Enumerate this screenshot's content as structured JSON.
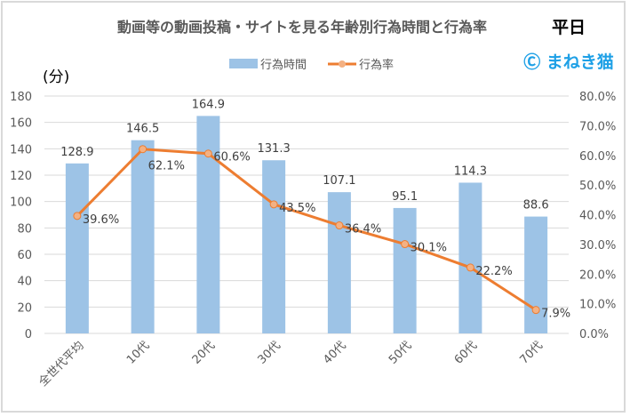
{
  "chart_data": {
    "type": "bar+line",
    "title": "動画等の動画投稿・サイトを見る年齢別行為時間と行為率",
    "title_suffix": "平日",
    "watermark": "Ⓒ まねき猫",
    "ylabel_left": "(分)",
    "categories": [
      "全世代平均",
      "10代",
      "20代",
      "30代",
      "40代",
      "50代",
      "60代",
      "70代"
    ],
    "series": [
      {
        "name": "行為時間",
        "type": "bar",
        "axis": "left",
        "color": "#9dc3e6",
        "values": [
          128.9,
          146.5,
          164.9,
          131.3,
          107.1,
          95.1,
          114.3,
          88.6
        ],
        "labels": [
          "128.9",
          "146.5",
          "164.9",
          "131.3",
          "107.1",
          "95.1",
          "114.3",
          "88.6"
        ]
      },
      {
        "name": "行為率",
        "type": "line",
        "axis": "right",
        "color": "#ed7d31",
        "marker_color": "#f4b183",
        "values": [
          39.6,
          62.1,
          60.6,
          43.5,
          36.4,
          30.1,
          22.2,
          7.9
        ],
        "labels": [
          "39.6%",
          "62.1%",
          "60.6%",
          "43.5%",
          "36.4%",
          "30.1%",
          "22.2%",
          "7.9%"
        ]
      }
    ],
    "y_left": {
      "range": [
        0,
        180
      ],
      "ticks": [
        "0",
        "20",
        "40",
        "60",
        "80",
        "100",
        "120",
        "140",
        "160",
        "180"
      ]
    },
    "y_right": {
      "range": [
        0,
        80
      ],
      "ticks": [
        "0.0%",
        "10.0%",
        "20.0%",
        "30.0%",
        "40.0%",
        "50.0%",
        "60.0%",
        "70.0%",
        "80.0%"
      ]
    },
    "grid": true,
    "legend": "top"
  }
}
